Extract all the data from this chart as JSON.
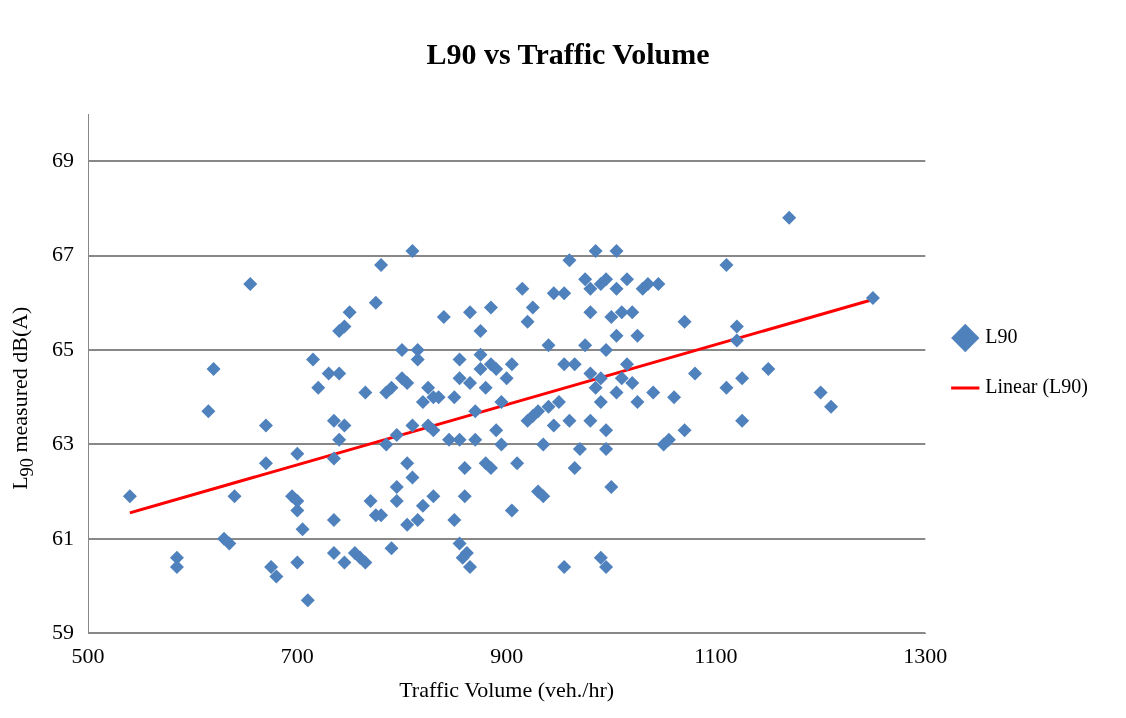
{
  "chart_data": {
    "type": "scatter",
    "title": "L90 vs Traffic Volume",
    "xlabel": "Traffic Volume (veh./hr)",
    "ylabel": "L$_{90}$ measured dB(A)",
    "xlim": [
      500,
      1300
    ],
    "xticks": [
      500,
      700,
      900,
      1100,
      1300
    ],
    "ylim": [
      59,
      70
    ],
    "yticks": [
      59,
      61,
      63,
      65,
      67,
      69
    ],
    "grid": "y",
    "legend": "right",
    "marker": "diamond",
    "series": [
      {
        "name": "L90",
        "color": "#4f81bd",
        "x": [
          540,
          585,
          585,
          615,
          620,
          630,
          635,
          640,
          655,
          670,
          670,
          675,
          680,
          695,
          700,
          700,
          700,
          700,
          705,
          710,
          715,
          720,
          730,
          735,
          735,
          735,
          735,
          740,
          740,
          740,
          745,
          745,
          745,
          750,
          755,
          760,
          765,
          765,
          770,
          775,
          775,
          780,
          780,
          785,
          785,
          790,
          790,
          795,
          795,
          795,
          800,
          800,
          805,
          805,
          805,
          810,
          810,
          810,
          815,
          815,
          815,
          820,
          820,
          825,
          825,
          830,
          830,
          830,
          835,
          840,
          845,
          850,
          850,
          855,
          855,
          855,
          855,
          858,
          860,
          860,
          862,
          865,
          865,
          865,
          870,
          870,
          875,
          875,
          875,
          880,
          880,
          885,
          885,
          885,
          890,
          890,
          895,
          895,
          900,
          905,
          905,
          910,
          915,
          920,
          920,
          925,
          925,
          930,
          930,
          935,
          935,
          940,
          940,
          945,
          945,
          950,
          955,
          955,
          955,
          960,
          960,
          965,
          965,
          970,
          975,
          975,
          980,
          980,
          980,
          980,
          985,
          985,
          990,
          990,
          990,
          990,
          995,
          995,
          995,
          995,
          995,
          1000,
          1000,
          1005,
          1005,
          1005,
          1005,
          1010,
          1010,
          1015,
          1015,
          1020,
          1020,
          1025,
          1025,
          1030,
          1035,
          1040,
          1045,
          1050,
          1055,
          1060,
          1070,
          1070,
          1080,
          1110,
          1110,
          1120,
          1120,
          1125,
          1125,
          1150,
          1170,
          1200,
          1210,
          1250
        ],
        "values": [
          61.9,
          60.6,
          60.4,
          63.7,
          64.6,
          61.0,
          60.9,
          61.9,
          66.4,
          63.4,
          62.6,
          60.4,
          60.2,
          61.9,
          61.8,
          61.6,
          62.8,
          60.5,
          61.2,
          59.7,
          64.8,
          64.2,
          64.5,
          63.5,
          62.7,
          61.4,
          60.7,
          65.4,
          64.5,
          63.1,
          65.5,
          63.4,
          60.5,
          65.8,
          60.7,
          60.6,
          64.1,
          60.5,
          61.8,
          66.0,
          61.5,
          66.8,
          61.5,
          63.0,
          64.1,
          64.2,
          60.8,
          62.1,
          61.8,
          63.2,
          65.0,
          64.4,
          64.3,
          62.6,
          61.3,
          67.1,
          62.3,
          63.4,
          65.0,
          64.8,
          61.4,
          63.9,
          61.7,
          64.2,
          63.4,
          64.0,
          63.3,
          61.9,
          64.0,
          65.7,
          63.1,
          64.0,
          61.4,
          64.4,
          64.8,
          63.1,
          60.9,
          60.6,
          62.5,
          61.9,
          60.7,
          65.8,
          64.3,
          60.4,
          63.7,
          63.1,
          65.4,
          64.9,
          64.6,
          64.2,
          62.6,
          65.9,
          64.7,
          62.5,
          63.3,
          64.6,
          63.9,
          63.0,
          64.4,
          64.7,
          61.6,
          62.6,
          66.3,
          65.6,
          63.5,
          65.9,
          63.6,
          62.0,
          63.7,
          61.9,
          63.0,
          65.1,
          63.8,
          66.2,
          63.4,
          63.9,
          66.2,
          64.7,
          60.4,
          66.9,
          63.5,
          64.7,
          62.5,
          62.9,
          66.5,
          65.1,
          66.3,
          65.8,
          64.5,
          63.5,
          67.1,
          64.2,
          66.4,
          64.4,
          63.9,
          60.6,
          66.5,
          65.0,
          63.3,
          62.9,
          60.4,
          65.7,
          62.1,
          67.1,
          66.3,
          65.3,
          64.1,
          65.8,
          64.4,
          66.5,
          64.7,
          65.8,
          64.3,
          65.3,
          63.9,
          66.3,
          66.4,
          64.1,
          66.4,
          63.0,
          63.1,
          64.0,
          65.6,
          63.3,
          64.5,
          66.8,
          64.2,
          65.5,
          65.2,
          64.4,
          63.5,
          64.6,
          67.8,
          64.1,
          63.8,
          66.1
        ]
      },
      {
        "name": "Linear (L90)",
        "type": "line",
        "color": "#ff0000",
        "marker": "none",
        "x": [
          540,
          1250
        ],
        "values": [
          61.55,
          66.07
        ]
      }
    ]
  }
}
